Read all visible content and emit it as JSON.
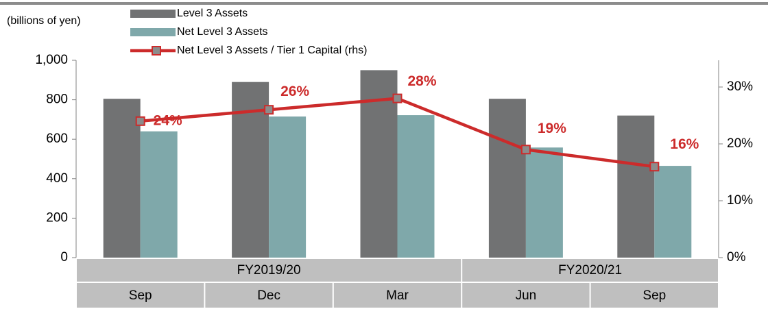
{
  "chart_data": {
    "type": "bar-line",
    "ylabel": "(billions of yen)",
    "groups": [
      {
        "label": "FY2019/20",
        "categories": [
          "Sep",
          "Dec",
          "Mar"
        ]
      },
      {
        "label": "FY2020/21",
        "categories": [
          "Jun",
          "Sep"
        ]
      }
    ],
    "series": [
      {
        "name": "Level 3 Assets",
        "type": "bar",
        "color": "#717273",
        "values": [
          805,
          890,
          950,
          805,
          720
        ]
      },
      {
        "name": "Net Level 3 Assets",
        "type": "bar",
        "color": "#7fa8aa",
        "values": [
          640,
          715,
          722,
          558,
          465
        ]
      },
      {
        "name": "Net Level 3 Assets  / Tier 1 Capital (rhs)",
        "type": "line",
        "axis": "y2",
        "color": "#cc2b2b",
        "values": [
          24,
          26,
          28,
          19,
          16
        ],
        "value_labels": [
          "24%",
          "26%",
          "28%",
          "19%",
          "16%"
        ]
      }
    ],
    "ylim": [
      0,
      1000
    ],
    "yticks": [
      0,
      200,
      400,
      600,
      800,
      {
        "value": 1000,
        "label": "1,000"
      }
    ],
    "y2lim": [
      0,
      34.7
    ],
    "y2ticks": [
      {
        "value": 0,
        "label": "0%"
      },
      {
        "value": 10,
        "label": "10%"
      },
      {
        "value": 20,
        "label": "20%"
      },
      {
        "value": 30,
        "label": "30%"
      }
    ]
  }
}
